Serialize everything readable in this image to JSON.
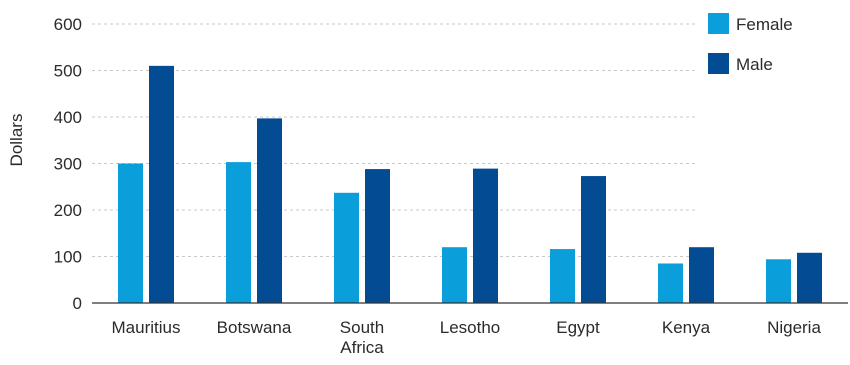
{
  "chart_data": {
    "type": "bar",
    "title": "",
    "xlabel": "",
    "ylabel": "Dollars",
    "ylim": [
      0,
      600
    ],
    "yticks": [
      0,
      100,
      200,
      300,
      400,
      500,
      600
    ],
    "grid": "horizontal-dashed",
    "legend_position": "top-right",
    "categories": [
      [
        "Mauritius"
      ],
      [
        "Botswana"
      ],
      [
        "South",
        "Africa"
      ],
      [
        "Lesotho"
      ],
      [
        "Egypt"
      ],
      [
        "Kenya"
      ],
      [
        "Nigeria"
      ]
    ],
    "series": [
      {
        "name": "Female",
        "color": "#0a9edb",
        "values": [
          300,
          303,
          237,
          120,
          116,
          85,
          94
        ]
      },
      {
        "name": "Male",
        "color": "#034c93",
        "values": [
          510,
          397,
          288,
          289,
          273,
          120,
          108
        ]
      }
    ]
  }
}
